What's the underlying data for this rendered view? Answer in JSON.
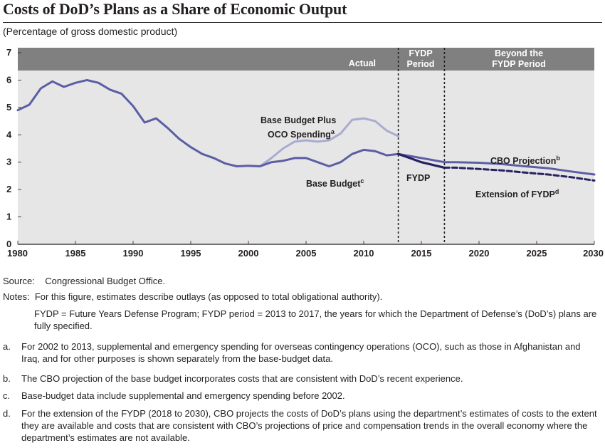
{
  "title": "Costs of DoD’s Plans as a Share of Economic Output",
  "subtitle": "(Percentage of gross domestic product)",
  "chart_data": {
    "type": "line",
    "xlim": [
      1980,
      2030
    ],
    "ylim": [
      0,
      7
    ],
    "x_ticks": [
      "1980",
      "1985",
      "1990",
      "1995",
      "2000",
      "2005",
      "2010",
      "2015",
      "2020",
      "2025",
      "2030"
    ],
    "y_ticks": [
      "0",
      "1",
      "2",
      "3",
      "4",
      "5",
      "6",
      "7"
    ],
    "period_dividers": [
      2013,
      2017
    ],
    "period_headers": {
      "actual": "Actual",
      "fydp_line1": "FYDP",
      "fydp_line2": "Period",
      "beyond_line1": "Beyond the",
      "beyond_line2": "FYDP Period"
    },
    "colors": {
      "base_budget": "#5b5ea4",
      "oco": "#a9abd0",
      "fydp": "#262262",
      "extension": "#262262",
      "plot_bg": "#e6e6e6",
      "header_bg": "#808080"
    },
    "series": [
      {
        "key": "base_budget",
        "x": [
          1980,
          1981,
          1982,
          1983,
          1984,
          1985,
          1986,
          1987,
          1988,
          1989,
          1990,
          1991,
          1992,
          1993,
          1994,
          1995,
          1996,
          1997,
          1998,
          1999,
          2000,
          2001,
          2002,
          2003,
          2004,
          2005,
          2006,
          2007,
          2008,
          2009,
          2010,
          2011,
          2012,
          2013
        ],
        "y": [
          4.9,
          5.1,
          5.7,
          5.95,
          5.75,
          5.9,
          6.0,
          5.9,
          5.65,
          5.5,
          5.05,
          4.45,
          4.6,
          4.25,
          3.85,
          3.55,
          3.3,
          3.15,
          2.95,
          2.85,
          2.87,
          2.85,
          3.0,
          3.05,
          3.15,
          3.15,
          3.0,
          2.85,
          3.0,
          3.3,
          3.45,
          3.4,
          3.25,
          3.3
        ]
      },
      {
        "key": "oco",
        "x": [
          2001,
          2002,
          2003,
          2004,
          2005,
          2006,
          2007,
          2008,
          2009,
          2010,
          2011,
          2012,
          2013
        ],
        "y": [
          2.85,
          3.15,
          3.5,
          3.75,
          3.8,
          3.75,
          3.8,
          4.05,
          4.55,
          4.6,
          4.5,
          4.15,
          3.95
        ]
      },
      {
        "key": "fydp",
        "x": [
          2013,
          2014,
          2015,
          2016,
          2017
        ],
        "y": [
          3.3,
          3.15,
          3.0,
          2.9,
          2.8
        ]
      },
      {
        "key": "cbo_projection",
        "x": [
          2013,
          2015,
          2017,
          2018,
          2020,
          2022,
          2024,
          2026,
          2028,
          2030
        ],
        "y": [
          3.3,
          3.15,
          3.0,
          3.0,
          2.98,
          2.93,
          2.85,
          2.78,
          2.66,
          2.55
        ]
      },
      {
        "key": "extension",
        "x": [
          2017,
          2018,
          2020,
          2022,
          2024,
          2026,
          2028,
          2030
        ],
        "y": [
          2.8,
          2.8,
          2.75,
          2.7,
          2.62,
          2.55,
          2.45,
          2.33
        ]
      }
    ],
    "annotations": {
      "oco_line1": "Base Budget Plus",
      "oco_line2": "OCO Spending",
      "oco_sup": "a",
      "base": "Base Budget",
      "base_sup": "c",
      "fydp": "FYDP",
      "cbo": "CBO Projection",
      "cbo_sup": "b",
      "ext": "Extension of FYDP",
      "ext_sup": "d"
    }
  },
  "notes": {
    "source_label": "Source:",
    "source_text": "Congressional Budget Office.",
    "notes_label": "Notes:",
    "notes_text": "For this figure, estimates describe outlays (as opposed to total obligational authority).",
    "notes_text2": "FYDP = Future Years Defense Program; FYDP period = 2013 to 2017, the years for which the Department of Defense’s (DoD’s) plans are fully specified.",
    "a_label": "a.",
    "a_text": "For 2002 to 2013, supplemental and emergency spending for overseas contingency operations (OCO), such as those in Afghanistan and Iraq, and for other purposes is shown separately from the base-budget data.",
    "b_label": "b.",
    "b_text": "The CBO projection of the base budget incorporates costs that are consistent with DoD’s recent experience.",
    "c_label": "c.",
    "c_text": "Base-budget data include supplemental and emergency spending before 2002.",
    "d_label": "d.",
    "d_text": "For the extension of the FYDP (2018 to 2030), CBO projects the costs of DoD’s plans using the department’s estimates of costs to the extent they are available and costs that are consistent with CBO’s projections of price and compensation trends in the overall economy where the department’s estimates are not available."
  }
}
